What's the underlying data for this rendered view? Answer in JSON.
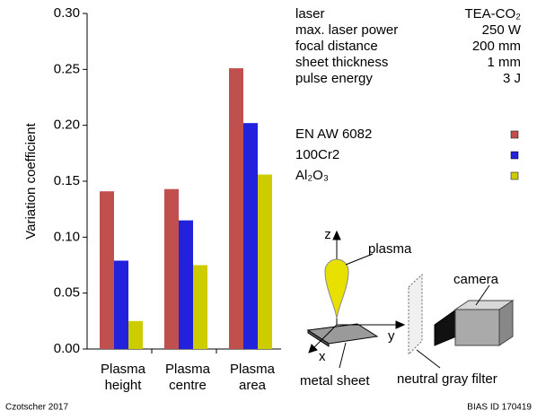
{
  "chart_data": {
    "type": "bar",
    "y_label": "Variation coefficient",
    "categories": [
      "Plasma height",
      "Plasma centre",
      "Plasma area"
    ],
    "series": [
      {
        "name": "EN AW 6082",
        "color": "#c0504d",
        "values": [
          0.141,
          0.143,
          0.251
        ]
      },
      {
        "name": "100Cr2",
        "color": "#2222dd",
        "values": [
          0.079,
          0.115,
          0.202
        ]
      },
      {
        "name": "Al₂O₃",
        "color": "#cccc00",
        "values": [
          0.025,
          0.075,
          0.156
        ]
      }
    ],
    "ylim": [
      0,
      0.3
    ],
    "yticks": [
      {
        "value": 0,
        "label": "0.00"
      },
      0.05,
      {
        "value": 0.1,
        "label": "0.10"
      },
      0.15,
      {
        "value": 0.2,
        "label": "0.20"
      },
      0.25,
      {
        "value": 0.3,
        "label": "0.30"
      }
    ],
    "grid": false
  },
  "parameters": [
    {
      "label": "laser",
      "value": "TEA-CO₂"
    },
    {
      "label": "max. laser power",
      "value": "250 W"
    },
    {
      "label": "focal distance",
      "value": "200 mm"
    },
    {
      "label": "sheet thickness",
      "value": "1 mm"
    },
    {
      "label": "pulse energy",
      "value": "3 J"
    }
  ],
  "diagram": {
    "z": "z",
    "x": "x",
    "y": "y",
    "plasma": "plasma",
    "camera": "camera",
    "metal_sheet": "metal sheet",
    "filter": "neutral gray filter"
  },
  "footer": {
    "left": "Czotscher 2017",
    "right": "BIAS ID 170419"
  }
}
